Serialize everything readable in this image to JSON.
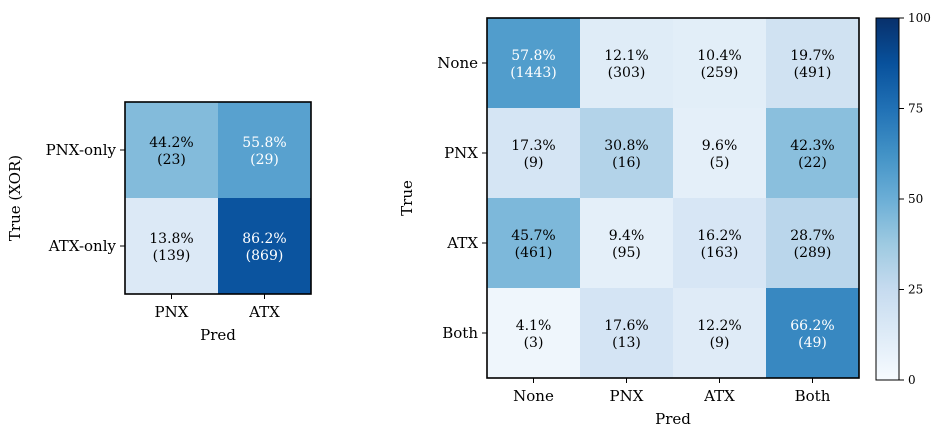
{
  "chart_data": [
    {
      "type": "heatmap",
      "name": "xor-confusion-matrix",
      "rows": [
        "PNX-only",
        "ATX-only"
      ],
      "cols": [
        "PNX",
        "ATX"
      ],
      "xlabel": "Pred",
      "ylabel": "True (XOR)",
      "percent_values": [
        [
          44.2,
          55.8
        ],
        [
          13.8,
          86.2
        ]
      ],
      "cells": [
        [
          {
            "pct": "44.2%",
            "count": "(23)"
          },
          {
            "pct": "55.8%",
            "count": "(29)"
          }
        ],
        [
          {
            "pct": "13.8%",
            "count": "(139)"
          },
          {
            "pct": "86.2%",
            "count": "(869)"
          }
        ]
      ]
    },
    {
      "type": "heatmap",
      "name": "full-confusion-matrix",
      "rows": [
        "None",
        "PNX",
        "ATX",
        "Both"
      ],
      "cols": [
        "None",
        "PNX",
        "ATX",
        "Both"
      ],
      "xlabel": "Pred",
      "ylabel": "True",
      "percent_values": [
        [
          57.8,
          12.1,
          10.4,
          19.7
        ],
        [
          17.3,
          30.8,
          9.6,
          42.3
        ],
        [
          45.7,
          9.4,
          16.2,
          28.7
        ],
        [
          4.1,
          17.6,
          12.2,
          66.2
        ]
      ],
      "cells": [
        [
          {
            "pct": "57.8%",
            "count": "(1443)"
          },
          {
            "pct": "12.1%",
            "count": "(303)"
          },
          {
            "pct": "10.4%",
            "count": "(259)"
          },
          {
            "pct": "19.7%",
            "count": "(491)"
          }
        ],
        [
          {
            "pct": "17.3%",
            "count": "(9)"
          },
          {
            "pct": "30.8%",
            "count": "(16)"
          },
          {
            "pct": "9.6%",
            "count": "(5)"
          },
          {
            "pct": "42.3%",
            "count": "(22)"
          }
        ],
        [
          {
            "pct": "45.7%",
            "count": "(461)"
          },
          {
            "pct": "9.4%",
            "count": "(95)"
          },
          {
            "pct": "16.2%",
            "count": "(163)"
          },
          {
            "pct": "28.7%",
            "count": "(289)"
          }
        ],
        [
          {
            "pct": "4.1%",
            "count": "(3)"
          },
          {
            "pct": "17.6%",
            "count": "(13)"
          },
          {
            "pct": "12.2%",
            "count": "(9)"
          },
          {
            "pct": "66.2%",
            "count": "(49)"
          }
        ]
      ]
    }
  ],
  "colorbar": {
    "min": 0,
    "max": 100,
    "ticks": [
      "0",
      "25",
      "50",
      "75",
      "100"
    ],
    "colormap": "Blues"
  }
}
